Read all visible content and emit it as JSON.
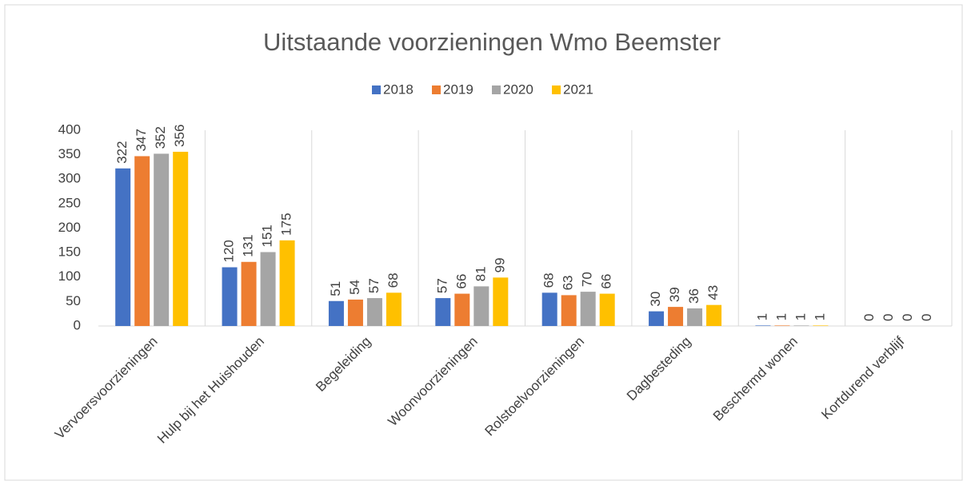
{
  "chart_data": {
    "type": "bar",
    "title": "Uitstaande voorzieningen Wmo Beemster",
    "categories": [
      "Vervoersvoorzieningen",
      "Hulp bij het Huishouden",
      "Begeleiding",
      "Woonvoorzieningen",
      "Rolstoelvoorzieningen",
      "Dagbesteding",
      "Beschermd wonen",
      "Kortdurend verblijf"
    ],
    "series": [
      {
        "name": "2018",
        "color": "#4472c4",
        "values": [
          322,
          120,
          51,
          57,
          68,
          30,
          1,
          0
        ]
      },
      {
        "name": "2019",
        "color": "#ed7d31",
        "values": [
          347,
          131,
          54,
          66,
          63,
          39,
          1,
          0
        ]
      },
      {
        "name": "2020",
        "color": "#a5a5a5",
        "values": [
          352,
          151,
          57,
          81,
          70,
          36,
          1,
          0
        ]
      },
      {
        "name": "2021",
        "color": "#ffc000",
        "values": [
          356,
          175,
          68,
          99,
          66,
          43,
          1,
          0
        ]
      }
    ],
    "ylim": [
      0,
      400
    ],
    "yticks": [
      0,
      50,
      100,
      150,
      200,
      250,
      300,
      350,
      400
    ],
    "category_gridlines": true,
    "legend": "top"
  }
}
